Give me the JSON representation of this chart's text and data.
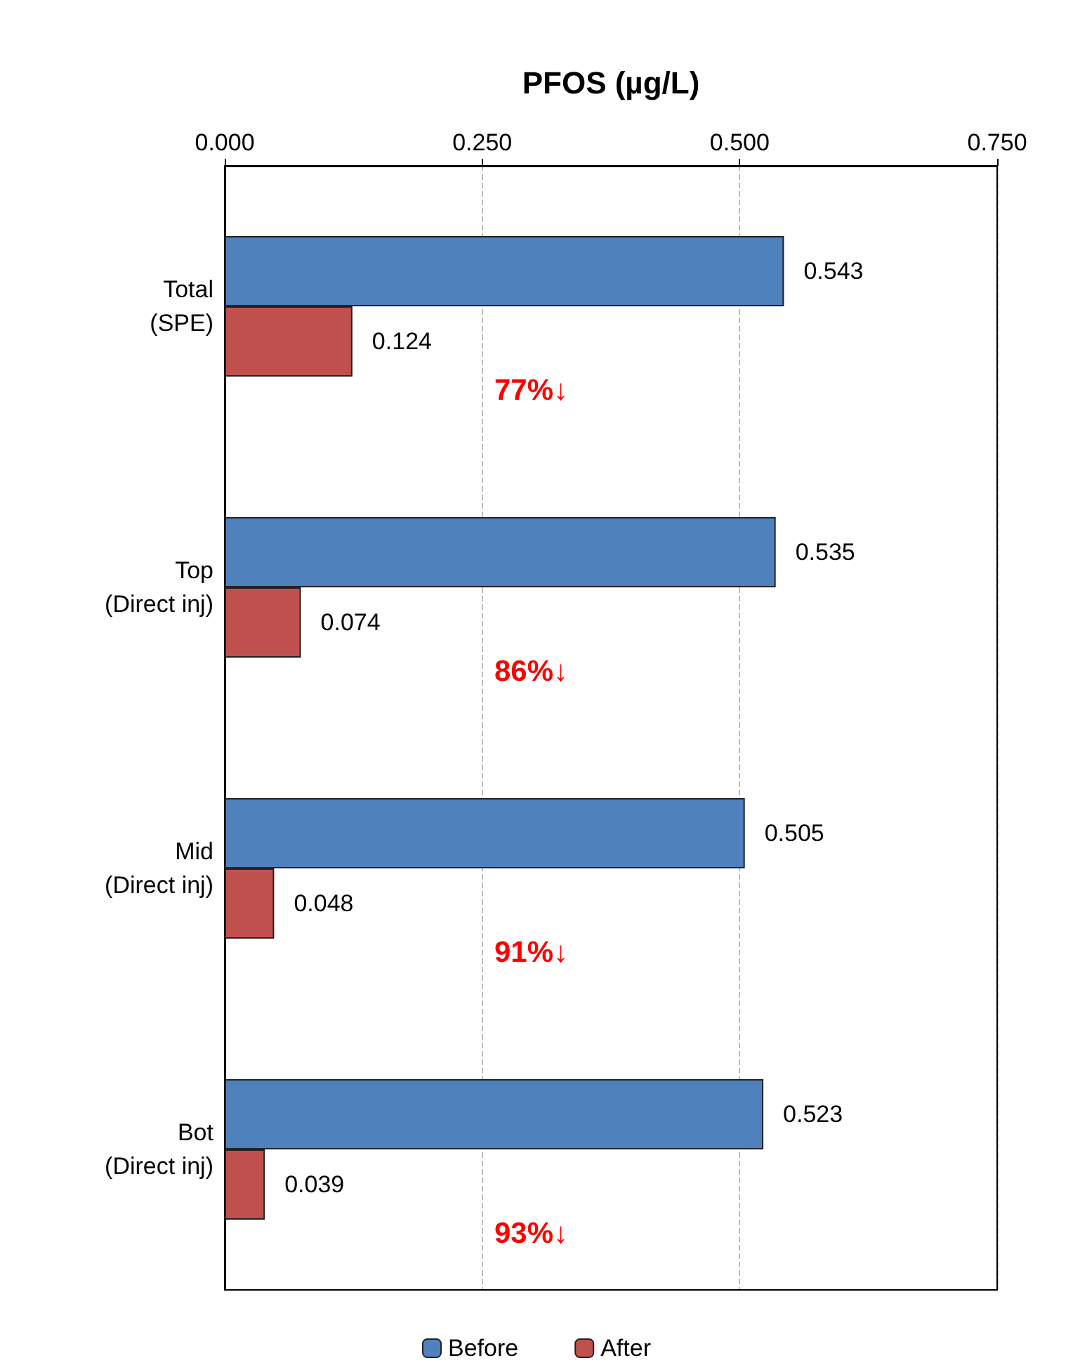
{
  "chart_data": {
    "type": "bar",
    "orientation": "horizontal",
    "xlabel": "PFOS (µg/L)",
    "categories": [
      "Total\n(SPE)",
      "Top\n(Direct inj)",
      "Mid\n(Direct inj)",
      "Bot\n(Direct inj)"
    ],
    "series": [
      {
        "name": "Before",
        "color": "#4f81bd",
        "values": [
          0.543,
          0.535,
          0.505,
          0.523
        ]
      },
      {
        "name": "After",
        "color": "#c0504d",
        "values": [
          0.124,
          0.074,
          0.048,
          0.039
        ]
      }
    ],
    "xlim": [
      0,
      0.75
    ],
    "xticks": [
      {
        "value": 0,
        "label": "0.000"
      },
      {
        "value": 0.25,
        "label": "0.250"
      },
      {
        "value": 0.5,
        "label": "0.500"
      },
      {
        "value": 0.75,
        "label": "0.750"
      }
    ],
    "grid": "x",
    "legend": "bottom",
    "data_labels": true,
    "annotations": [
      "77%↓",
      "86%↓",
      "91%↓",
      "93%↓"
    ]
  }
}
